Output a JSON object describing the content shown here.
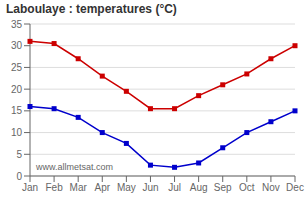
{
  "chart_data": {
    "type": "line",
    "title": "Laboulaye : temperatures (°C)",
    "categories": [
      "Jan",
      "Feb",
      "Mar",
      "Apr",
      "May",
      "Jun",
      "Jul",
      "Aug",
      "Sep",
      "Oct",
      "Nov",
      "Dec"
    ],
    "series": [
      {
        "color": "#cc0000",
        "marker": "square",
        "values": [
          31,
          30.5,
          27,
          23,
          19.5,
          15.5,
          15.5,
          18.5,
          21,
          23.5,
          27,
          30
        ]
      },
      {
        "color": "#0000cc",
        "marker": "square",
        "values": [
          16,
          15.5,
          13.5,
          10,
          7.5,
          2.5,
          2,
          3,
          6.5,
          10,
          12.5,
          15
        ]
      }
    ],
    "ylim": [
      0,
      35
    ],
    "yticks": [
      0,
      5,
      10,
      15,
      20,
      25,
      30,
      35
    ],
    "grid": "y",
    "annotations": [
      "www.allmetsat.com"
    ]
  }
}
